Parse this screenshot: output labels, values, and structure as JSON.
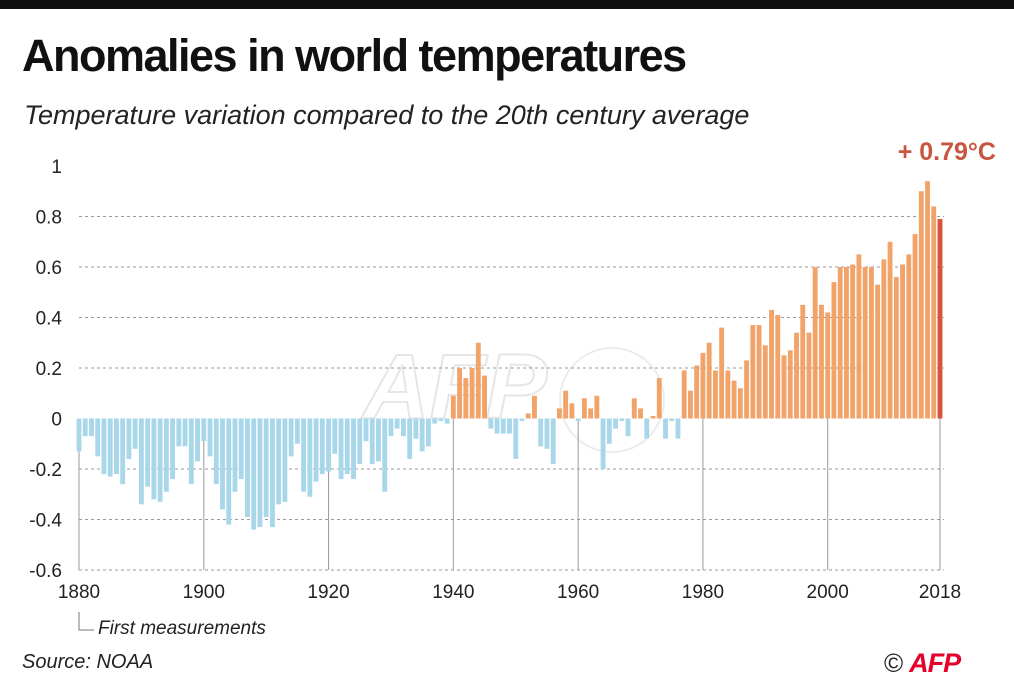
{
  "header": {
    "title": "Anomalies in world temperatures",
    "subtitle": "Temperature variation compared to the 20th century average"
  },
  "footer": {
    "source": "Source: NOAA",
    "first_measurements_note": "First measurements",
    "copyright_symbol": "©",
    "agency_logo": "AFP"
  },
  "watermark": "AFP",
  "colors": {
    "negative": "#a9d7ea",
    "positive": "#f1a36a",
    "latest": "#d9533c",
    "highlight_text": "#c8553f",
    "grid": "#9a9a9a"
  },
  "chart_data": {
    "type": "bar",
    "title": "Anomalies in world temperatures",
    "subtitle": "Temperature variation compared to the 20th century average",
    "xlabel": "",
    "ylabel": "",
    "ylim": [
      -0.6,
      1
    ],
    "grid": true,
    "y_ticks": [
      {
        "value": -0.6,
        "label": "-0.6"
      },
      {
        "value": -0.4,
        "label": "-0.4"
      },
      {
        "value": -0.2,
        "label": "-0.2"
      },
      {
        "value": 0,
        "label": "0"
      },
      {
        "value": 0.2,
        "label": "0.2"
      },
      {
        "value": 0.4,
        "label": "0.4"
      },
      {
        "value": 0.6,
        "label": "0.6"
      },
      {
        "value": 0.8,
        "label": "0.8"
      },
      {
        "value": 1,
        "label": "1"
      }
    ],
    "x_ticks": [
      {
        "value": 1880,
        "label": "1880"
      },
      {
        "value": 1900,
        "label": "1900"
      },
      {
        "value": 1920,
        "label": "1920"
      },
      {
        "value": 1940,
        "label": "1940"
      },
      {
        "value": 1960,
        "label": "1960"
      },
      {
        "value": 1980,
        "label": "1980"
      },
      {
        "value": 2000,
        "label": "2000"
      },
      {
        "value": 2018,
        "label": "2018"
      }
    ],
    "first_year": 1880,
    "years": [
      1880,
      1881,
      1882,
      1883,
      1884,
      1885,
      1886,
      1887,
      1888,
      1889,
      1890,
      1891,
      1892,
      1893,
      1894,
      1895,
      1896,
      1897,
      1898,
      1899,
      1900,
      1901,
      1902,
      1903,
      1904,
      1905,
      1906,
      1907,
      1908,
      1909,
      1910,
      1911,
      1912,
      1913,
      1914,
      1915,
      1916,
      1917,
      1918,
      1919,
      1920,
      1921,
      1922,
      1923,
      1924,
      1925,
      1926,
      1927,
      1928,
      1929,
      1930,
      1931,
      1932,
      1933,
      1934,
      1935,
      1936,
      1937,
      1938,
      1939,
      1940,
      1941,
      1942,
      1943,
      1944,
      1945,
      1946,
      1947,
      1948,
      1949,
      1950,
      1951,
      1952,
      1953,
      1954,
      1955,
      1956,
      1957,
      1958,
      1959,
      1960,
      1961,
      1962,
      1963,
      1964,
      1965,
      1966,
      1967,
      1968,
      1969,
      1970,
      1971,
      1972,
      1973,
      1974,
      1975,
      1976,
      1977,
      1978,
      1979,
      1980,
      1981,
      1982,
      1983,
      1984,
      1985,
      1986,
      1987,
      1988,
      1989,
      1990,
      1991,
      1992,
      1993,
      1994,
      1995,
      1996,
      1997,
      1998,
      1999,
      2000,
      2001,
      2002,
      2003,
      2004,
      2005,
      2006,
      2007,
      2008,
      2009,
      2010,
      2011,
      2012,
      2013,
      2014,
      2015,
      2016,
      2017,
      2018
    ],
    "values": [
      -0.13,
      -0.07,
      -0.07,
      -0.15,
      -0.22,
      -0.23,
      -0.22,
      -0.26,
      -0.16,
      -0.12,
      -0.34,
      -0.27,
      -0.32,
      -0.33,
      -0.29,
      -0.24,
      -0.11,
      -0.11,
      -0.26,
      -0.17,
      -0.09,
      -0.15,
      -0.26,
      -0.36,
      -0.42,
      -0.29,
      -0.24,
      -0.39,
      -0.44,
      -0.43,
      -0.39,
      -0.43,
      -0.34,
      -0.33,
      -0.15,
      -0.1,
      -0.29,
      -0.31,
      -0.25,
      -0.22,
      -0.21,
      -0.14,
      -0.24,
      -0.22,
      -0.24,
      -0.18,
      -0.09,
      -0.18,
      -0.17,
      -0.29,
      -0.07,
      -0.04,
      -0.07,
      -0.16,
      -0.08,
      -0.13,
      -0.11,
      -0.02,
      -0.01,
      -0.02,
      0.09,
      0.2,
      0.16,
      0.2,
      0.3,
      0.17,
      -0.04,
      -0.06,
      -0.06,
      -0.06,
      -0.16,
      -0.01,
      0.02,
      0.09,
      -0.11,
      -0.12,
      -0.18,
      0.04,
      0.11,
      0.06,
      -0.01,
      0.08,
      0.04,
      0.09,
      -0.2,
      -0.1,
      -0.04,
      -0.01,
      -0.07,
      0.08,
      0.04,
      -0.08,
      0.01,
      0.16,
      -0.08,
      -0.01,
      -0.08,
      0.19,
      0.11,
      0.21,
      0.26,
      0.3,
      0.19,
      0.36,
      0.19,
      0.15,
      0.12,
      0.23,
      0.37,
      0.37,
      0.29,
      0.43,
      0.41,
      0.25,
      0.27,
      0.34,
      0.45,
      0.34,
      0.6,
      0.45,
      0.42,
      0.54,
      0.6,
      0.6,
      0.61,
      0.65,
      0.6,
      0.6,
      0.53,
      0.63,
      0.7,
      0.56,
      0.61,
      0.65,
      0.73,
      0.9,
      0.94,
      0.84,
      0.79
    ],
    "annotation": {
      "year": 2018,
      "value": 0.79,
      "label": "+ 0.79°C"
    }
  }
}
